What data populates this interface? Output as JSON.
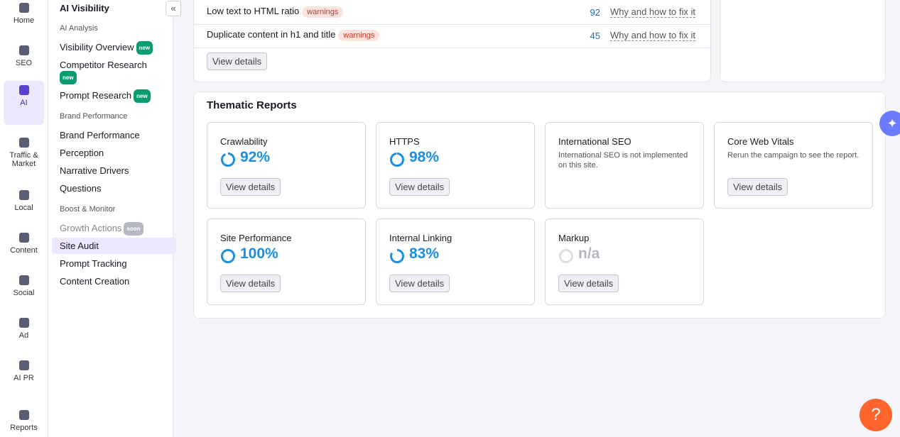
{
  "rail": [
    "Home",
    "SEO",
    "AI",
    "Traffic & Market",
    "Local",
    "Content",
    "Social",
    "Ad",
    "AI PR",
    "Reports"
  ],
  "menu": {
    "title": "AI Visibility",
    "sections": [
      {
        "heading": "AI Analysis",
        "items": [
          {
            "label": "Visibility Overview",
            "badge": "new"
          },
          {
            "label": "Competitor Research",
            "badge": "new"
          },
          {
            "label": "Prompt Research",
            "badge": "new"
          }
        ]
      },
      {
        "heading": "Brand Performance",
        "items": [
          {
            "label": "Brand Performance"
          },
          {
            "label": "Perception"
          },
          {
            "label": "Narrative Drivers"
          },
          {
            "label": "Questions"
          }
        ]
      },
      {
        "heading": "Boost & Monitor",
        "items": [
          {
            "label": "Growth Actions",
            "badge": "soon"
          },
          {
            "label": "Site Audit"
          },
          {
            "label": "Prompt Tracking"
          },
          {
            "label": "Content Creation"
          }
        ]
      }
    ]
  },
  "issues": [
    {
      "text": "Low text to HTML ratio",
      "tag": "warnings",
      "count": 92,
      "link": "Why and how to fix it"
    },
    {
      "text": "Duplicate content in h1 and title",
      "tag": "warnings",
      "count": 45,
      "link": "Why and how to fix it"
    }
  ],
  "issues_button": "View details",
  "thematic": {
    "title": "Thematic Reports",
    "tiles": [
      {
        "name": "Crawlability",
        "score": 92,
        "score_label": "92%",
        "button": "View details"
      },
      {
        "name": "HTTPS",
        "score": 98,
        "score_label": "98%",
        "button": "View details"
      },
      {
        "name": "International SEO",
        "description": "International SEO is not implemented on this site."
      },
      {
        "name": "Core Web Vitals",
        "description": "Rerun the campaign to see the report.",
        "button": "View details"
      },
      {
        "name": "Site Performance",
        "score": 100,
        "score_label": "100%",
        "button": "View details"
      },
      {
        "name": "Internal Linking",
        "score": 83,
        "score_label": "83%",
        "button": "View details"
      },
      {
        "name": "Markup",
        "score_label": "n/a",
        "button": "View details"
      }
    ]
  },
  "help": "?"
}
